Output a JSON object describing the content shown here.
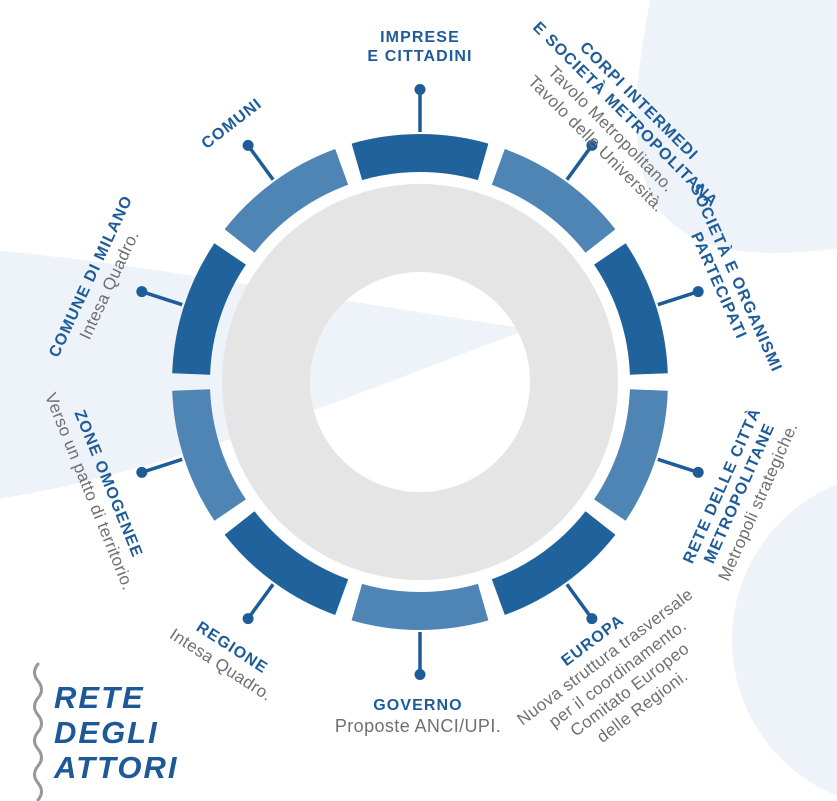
{
  "page_title": "Rete degli attori",
  "colors": {
    "segment_dark": "#20629c",
    "segment_light": "#4e85b5",
    "leader_line": "#1e5c99",
    "actor_title_text": "#1e5c99",
    "actor_subtitle_text": "#6f7073",
    "donut_gray": "#e5e5e6",
    "background_swash": "#eef3f9",
    "footer_title_text": "#1d5996",
    "squiggle_gray": "#97989b"
  },
  "footer": {
    "title": "RETE\nDEGLI\nATTORI"
  },
  "diagram": {
    "actors": [
      {
        "id": "imprese",
        "title": "IMPRESE\nE CITTADINI",
        "subtitle": "",
        "angle": 0,
        "tone": "dark"
      },
      {
        "id": "corpi",
        "title": "CORPI INTERMEDI\nE SOCIETÀ METROPOLITANA",
        "subtitle": "Tavolo Metropolitano.\nTavolo delle Università.",
        "angle": 36,
        "tone": "light"
      },
      {
        "id": "societa",
        "title": "SOCIETÀ E ORGANISMI\nPARTECIPATI",
        "subtitle": "",
        "angle": 72,
        "tone": "dark"
      },
      {
        "id": "rete-citta",
        "title": "RETE DELLE CITTÀ\nMETROPOLITANE",
        "subtitle": "Metropoli strategiche.",
        "angle": 108,
        "tone": "light"
      },
      {
        "id": "europa",
        "title": "EUROPA",
        "subtitle": "Nuova struttura trasversale\nper il coordinamento.\nComitato Europeo\ndelle Regioni.",
        "angle": 144,
        "tone": "dark"
      },
      {
        "id": "governo",
        "title": "GOVERNO",
        "subtitle": "Proposte ANCI/UPI.",
        "angle": 180,
        "tone": "light"
      },
      {
        "id": "regione",
        "title": "REGIONE",
        "subtitle": "Intesa Quadro.",
        "angle": 216,
        "tone": "dark"
      },
      {
        "id": "zone",
        "title": "ZONE OMOGENEE",
        "subtitle": "Verso un patto di territorio.",
        "angle": 252,
        "tone": "light"
      },
      {
        "id": "milano",
        "title": "COMUNE DI MILANO",
        "subtitle": "Intesa Quadro.",
        "angle": 288,
        "tone": "dark"
      },
      {
        "id": "comuni",
        "title": "COMUNI",
        "subtitle": "",
        "angle": 324,
        "tone": "light"
      }
    ]
  }
}
